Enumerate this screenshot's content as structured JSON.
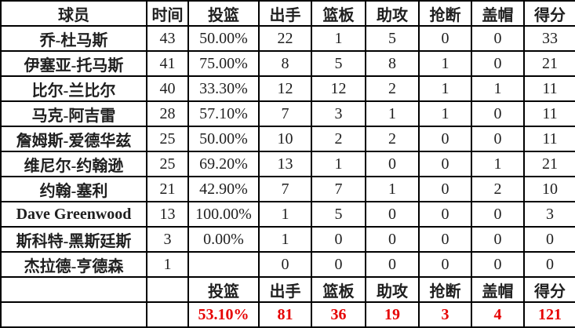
{
  "table": {
    "columns": [
      "球员",
      "时间",
      "投篮",
      "出手",
      "篮板",
      "助攻",
      "抢断",
      "盖帽",
      "得分"
    ],
    "rows": [
      [
        "乔-杜马斯",
        "43",
        "50.00%",
        "22",
        "1",
        "5",
        "0",
        "0",
        "33"
      ],
      [
        "伊塞亚-托马斯",
        "41",
        "75.00%",
        "8",
        "5",
        "8",
        "1",
        "0",
        "21"
      ],
      [
        "比尔-兰比尔",
        "40",
        "33.30%",
        "12",
        "12",
        "2",
        "1",
        "1",
        "11"
      ],
      [
        "马克-阿吉雷",
        "28",
        "57.10%",
        "7",
        "3",
        "1",
        "1",
        "0",
        "11"
      ],
      [
        "詹姆斯-爱德华兹",
        "25",
        "50.00%",
        "10",
        "2",
        "2",
        "0",
        "0",
        "11"
      ],
      [
        "维尼尔-约翰逊",
        "25",
        "69.20%",
        "13",
        "1",
        "0",
        "0",
        "1",
        "21"
      ],
      [
        "约翰-塞利",
        "21",
        "42.90%",
        "7",
        "7",
        "1",
        "0",
        "2",
        "10"
      ],
      [
        "Dave Greenwood",
        "13",
        "100.00%",
        "1",
        "5",
        "0",
        "0",
        "0",
        "3"
      ],
      [
        "斯科特-黑斯廷斯",
        "3",
        "0.00%",
        "1",
        "0",
        "0",
        "0",
        "0",
        "0"
      ],
      [
        "杰拉德-亨德森",
        "1",
        "",
        "0",
        "0",
        "0",
        "0",
        "0",
        "0"
      ]
    ],
    "footer_labels": [
      "",
      "",
      "投篮",
      "出手",
      "篮板",
      "助攻",
      "抢断",
      "盖帽",
      "得分"
    ],
    "totals": [
      "",
      "",
      "53.10%",
      "81",
      "36",
      "19",
      "3",
      "4",
      "121"
    ]
  },
  "colors": {
    "text": "#1f1f1f",
    "totals_text": "#e60000",
    "border": "#000000",
    "background": "#ffffff"
  }
}
